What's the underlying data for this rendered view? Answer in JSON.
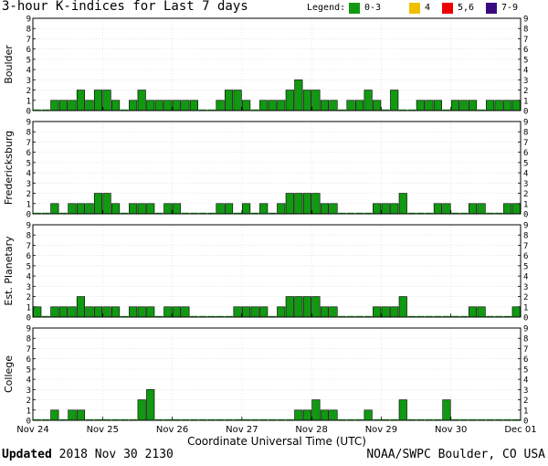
{
  "title": "3-hour K-indices for Last 7 days",
  "legend": {
    "label": "Legend:",
    "items": [
      {
        "label": "0-3",
        "color": "#119911"
      },
      {
        "label": "4",
        "color": "#f0c000"
      },
      {
        "label": "5,6",
        "color": "#ee0000"
      },
      {
        "label": "7-9",
        "color": "#3a0a80"
      }
    ]
  },
  "footer": {
    "updated_label": "Updated",
    "updated_value": "2018 Nov 30 2130",
    "credit": "NOAA/SWPC Boulder, CO USA"
  },
  "chart_data": {
    "type": "bar",
    "xlabel": "Coordinate Universal Time (UTC)",
    "x_ticks": [
      "Nov 24",
      "Nov 25",
      "Nov 26",
      "Nov 27",
      "Nov 28",
      "Nov 29",
      "Nov 30",
      "Dec 01"
    ],
    "intervals_per_day": 8,
    "yticks": [
      "0",
      "1",
      "2",
      "3",
      "4",
      "5",
      "6",
      "7",
      "8",
      "9"
    ],
    "ylim": [
      0,
      9
    ],
    "grid": true,
    "panels": [
      {
        "name": "Boulder",
        "values": [
          0,
          0,
          1,
          1,
          1,
          2,
          1,
          2,
          2,
          1,
          0,
          1,
          2,
          1,
          1,
          1,
          1,
          1,
          1,
          0,
          0,
          1,
          2,
          2,
          1,
          0,
          1,
          1,
          1,
          2,
          3,
          2,
          2,
          1,
          1,
          0,
          1,
          1,
          2,
          1,
          0,
          2,
          0,
          0,
          1,
          1,
          1,
          0,
          1,
          1,
          1,
          0,
          1,
          1,
          1,
          1,
          0
        ]
      },
      {
        "name": "Fredericksburg",
        "values": [
          0,
          0,
          1,
          0,
          1,
          1,
          1,
          2,
          2,
          1,
          0,
          1,
          1,
          1,
          0,
          1,
          1,
          0,
          0,
          0,
          0,
          1,
          1,
          0,
          1,
          0,
          1,
          0,
          1,
          2,
          2,
          2,
          2,
          1,
          1,
          0,
          0,
          0,
          0,
          1,
          1,
          1,
          2,
          0,
          0,
          0,
          1,
          1,
          0,
          0,
          1,
          1,
          0,
          0,
          1,
          1,
          1,
          0,
          0
        ]
      },
      {
        "name": "Est. Planetary",
        "values": [
          1,
          0,
          1,
          1,
          1,
          2,
          1,
          1,
          1,
          1,
          0,
          1,
          1,
          1,
          0,
          1,
          1,
          1,
          0,
          0,
          0,
          0,
          0,
          1,
          1,
          1,
          1,
          0,
          1,
          2,
          2,
          2,
          2,
          1,
          1,
          0,
          0,
          0,
          0,
          1,
          1,
          1,
          2,
          0,
          0,
          0,
          0,
          0,
          0,
          0,
          1,
          1,
          0,
          0,
          0,
          1,
          0,
          0,
          0
        ]
      },
      {
        "name": "College",
        "values": [
          0,
          0,
          1,
          0,
          1,
          1,
          0,
          0,
          0,
          0,
          0,
          0,
          2,
          3,
          0,
          0,
          0,
          0,
          0,
          0,
          0,
          0,
          0,
          0,
          0,
          0,
          0,
          0,
          0,
          0,
          1,
          1,
          2,
          1,
          1,
          0,
          0,
          0,
          1,
          0,
          0,
          0,
          2,
          0,
          0,
          0,
          0,
          2,
          0,
          0,
          0,
          0,
          0,
          0,
          0,
          0,
          0,
          0,
          0
        ]
      }
    ]
  }
}
